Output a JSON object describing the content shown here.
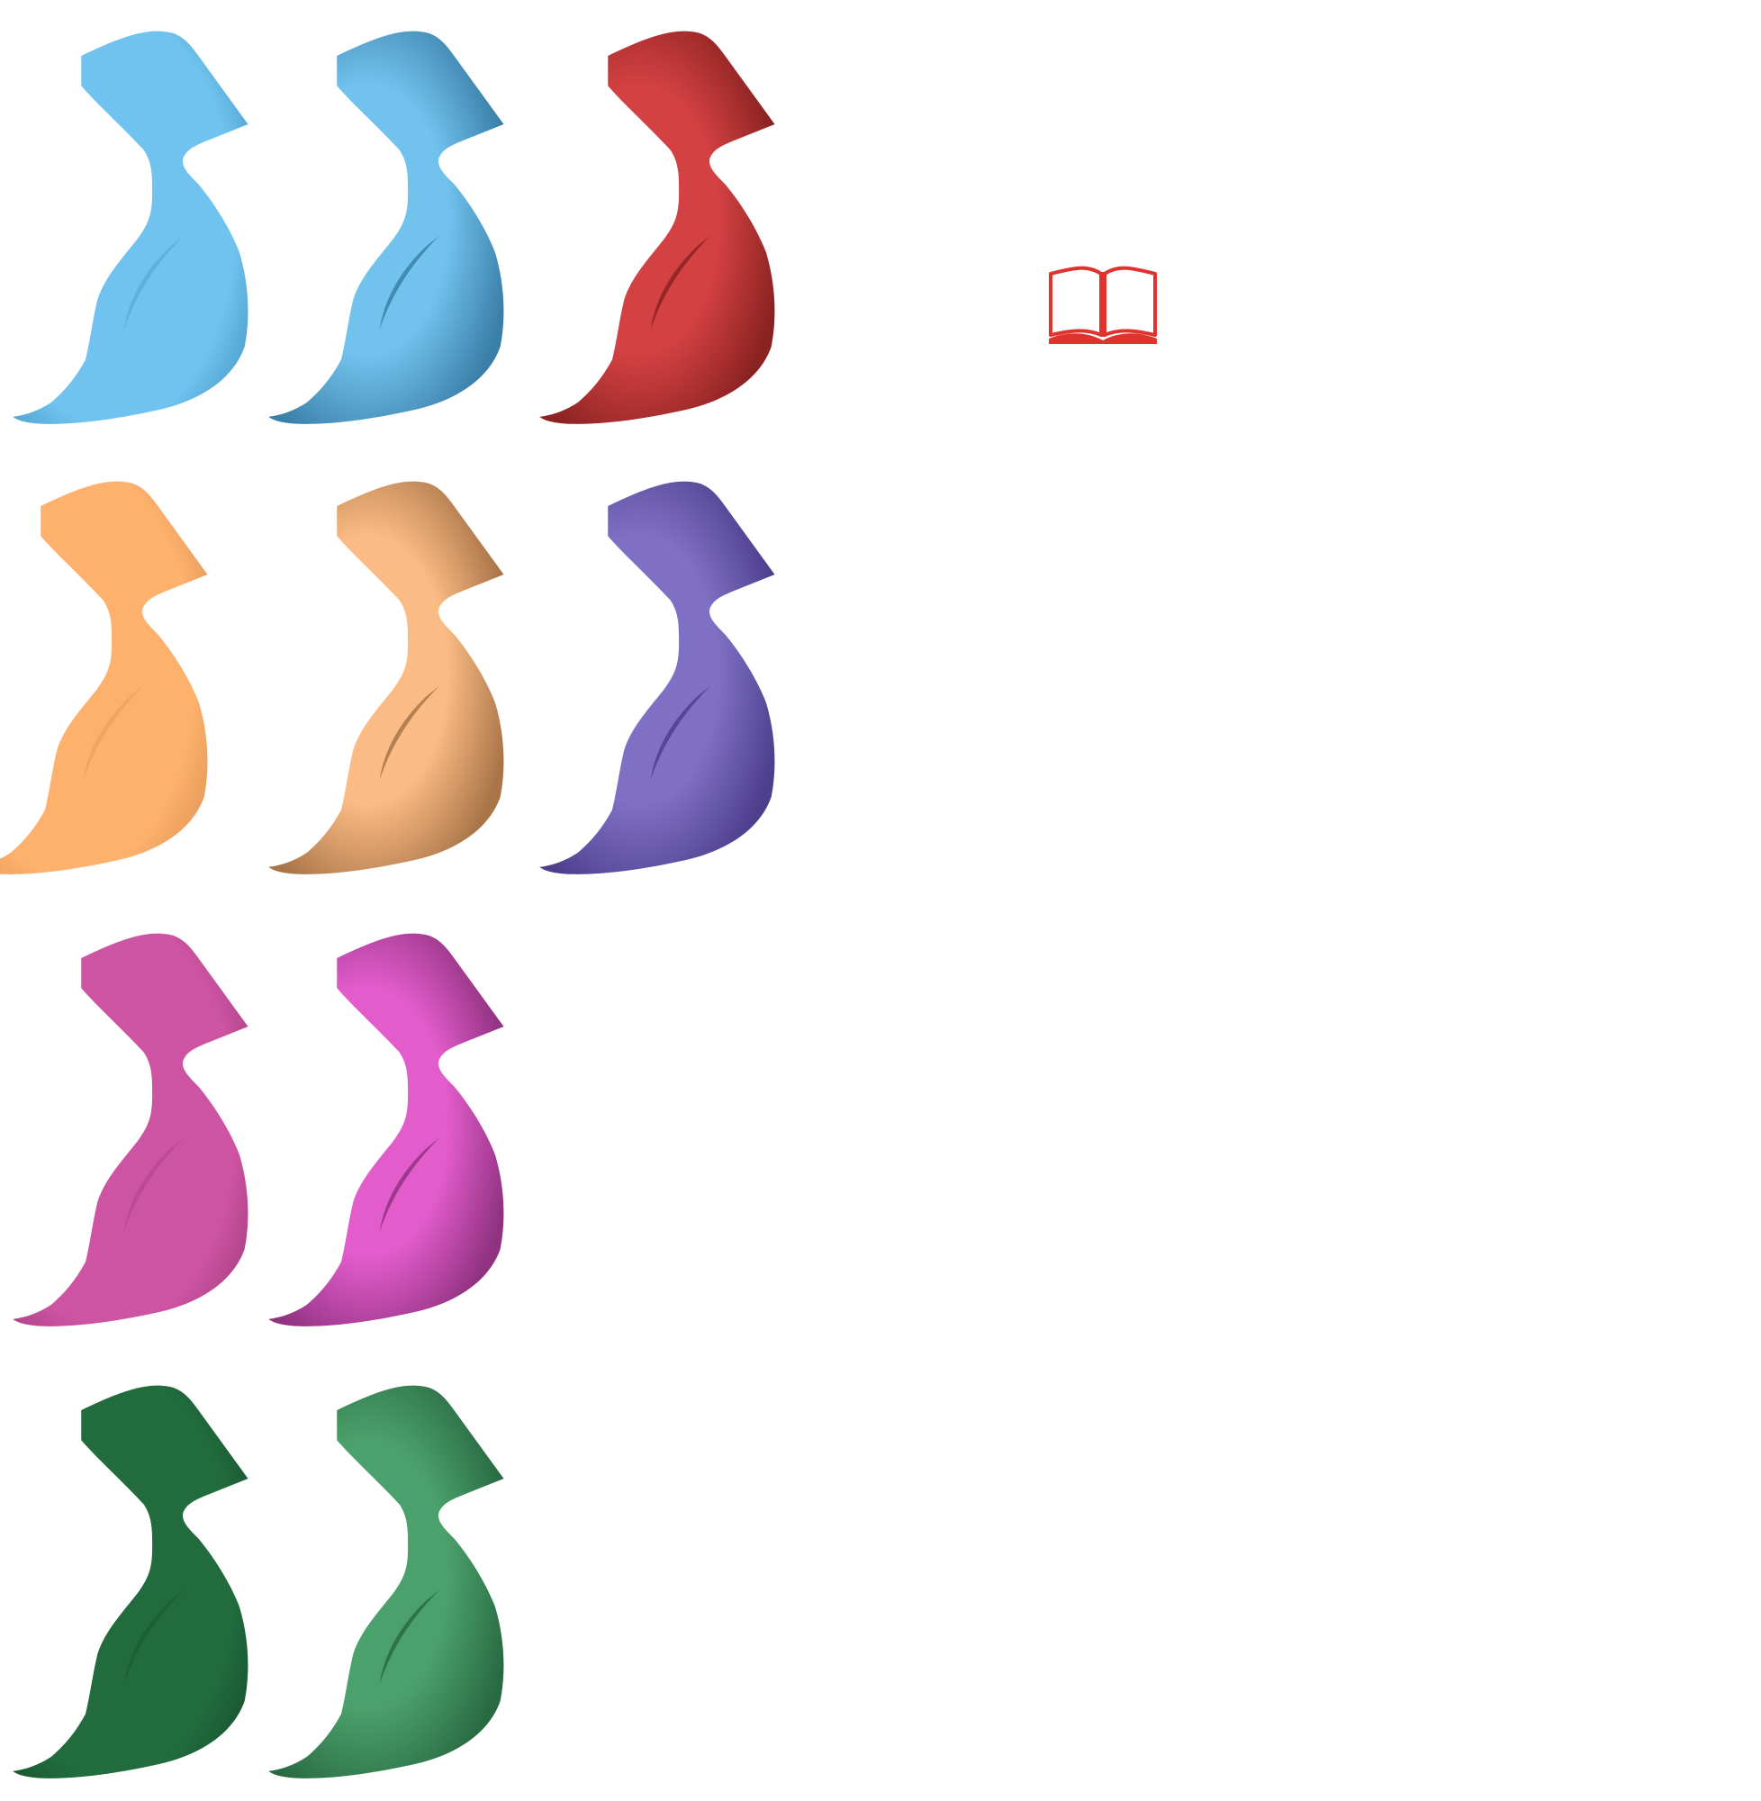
{
  "background": "#ffffff",
  "sprites": [
    {
      "id": "blue-light",
      "style": "soft",
      "color": "#6fc3ee",
      "shade": "#3f8fbf"
    },
    {
      "id": "blue-shaded",
      "style": "shaded",
      "color": "#71c3ee",
      "shade": "#3a7fa8"
    },
    {
      "id": "red-shaded",
      "style": "shaded",
      "color": "#d44142",
      "shade": "#8a2222"
    },
    {
      "id": "orange-light",
      "style": "soft",
      "color": "#feb06d",
      "shade": "#d99050"
    },
    {
      "id": "orange-shaded",
      "style": "shaded",
      "color": "#fbbb84",
      "shade": "#a87448"
    },
    {
      "id": "purple-shaded",
      "style": "shaded",
      "color": "#8070c5",
      "shade": "#4d3f8c"
    },
    {
      "id": "pink-soft",
      "style": "soft",
      "color": "#cd54a2",
      "shade": "#9a3a78"
    },
    {
      "id": "magenta-shaded",
      "style": "shaded",
      "color": "#e35ccc",
      "shade": "#8f3280"
    },
    {
      "id": "green-dark",
      "style": "soft",
      "color": "#216b3d",
      "shade": "#164a2a"
    },
    {
      "id": "green-shaded",
      "style": "shaded",
      "color": "#4ba16b",
      "shade": "#2a6a42"
    }
  ],
  "book_icon": {
    "name": "open-book-icon",
    "color": "#e1332e"
  }
}
